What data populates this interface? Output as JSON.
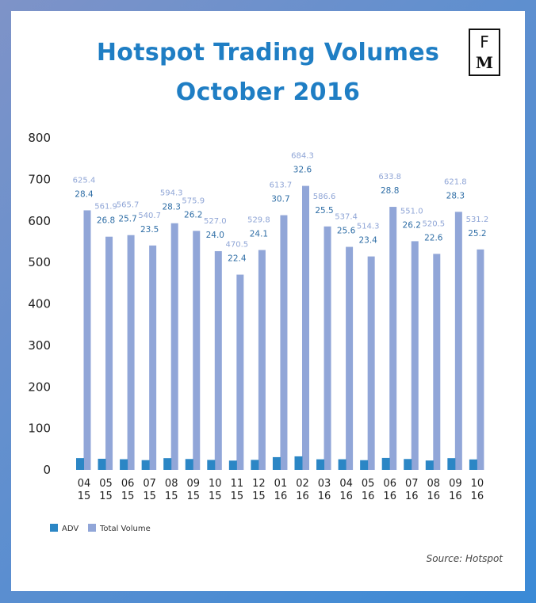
{
  "chart_data": {
    "type": "bar",
    "title": "Hotspot Trading Volumes",
    "subtitle": "October 2016",
    "categories": [
      "04\n15",
      "05\n15",
      "06\n15",
      "07\n15",
      "08\n15",
      "09\n15",
      "10\n15",
      "11\n15",
      "12\n15",
      "01\n16",
      "02\n16",
      "03\n16",
      "04\n16",
      "05\n16",
      "06\n16",
      "07\n16",
      "08\n16",
      "09\n16",
      "10\n16"
    ],
    "series": [
      {
        "name": "ADV",
        "color": "#2b86c5",
        "values": [
          28.4,
          26.8,
          25.7,
          23.5,
          28.3,
          26.2,
          24.0,
          22.4,
          24.1,
          30.7,
          32.6,
          25.5,
          25.6,
          23.4,
          28.8,
          26.2,
          22.6,
          28.3,
          25.2
        ],
        "labels": [
          "28.4",
          "26.8",
          "25.7",
          "23.5",
          "28.3",
          "26.2",
          "24.0",
          "22.4",
          "24.1",
          "30.7",
          "32.6",
          "25.5",
          "25.6",
          "23.4",
          "28.8",
          "26.2",
          "22.6",
          "28.3",
          "25.2"
        ]
      },
      {
        "name": "Total Volume",
        "color": "#91a6d8",
        "values": [
          625.4,
          561.9,
          565.7,
          540.7,
          594.3,
          575.9,
          527.0,
          470.5,
          529.8,
          613.7,
          684.3,
          586.6,
          537.4,
          514.3,
          633.8,
          551.0,
          520.5,
          621.8,
          531.2
        ],
        "labels": [
          "625.4",
          "561.9",
          "565.7",
          "540.7",
          "594.3",
          "575.9",
          "527.0",
          "470.5",
          "529.8",
          "613.7",
          "684.3",
          "586.6",
          "537.4",
          "514.3",
          "633.8",
          "551.0",
          "520.5",
          "621.8",
          "531.2"
        ]
      }
    ],
    "ylim": [
      0,
      800
    ],
    "yticks": [
      "0",
      "100",
      "200",
      "300",
      "400",
      "500",
      "600",
      "700",
      "800"
    ],
    "grid": false,
    "legend": "bottom-left",
    "source": "Source: Hotspot"
  },
  "logo": {
    "top": "F",
    "bottom": "M"
  }
}
